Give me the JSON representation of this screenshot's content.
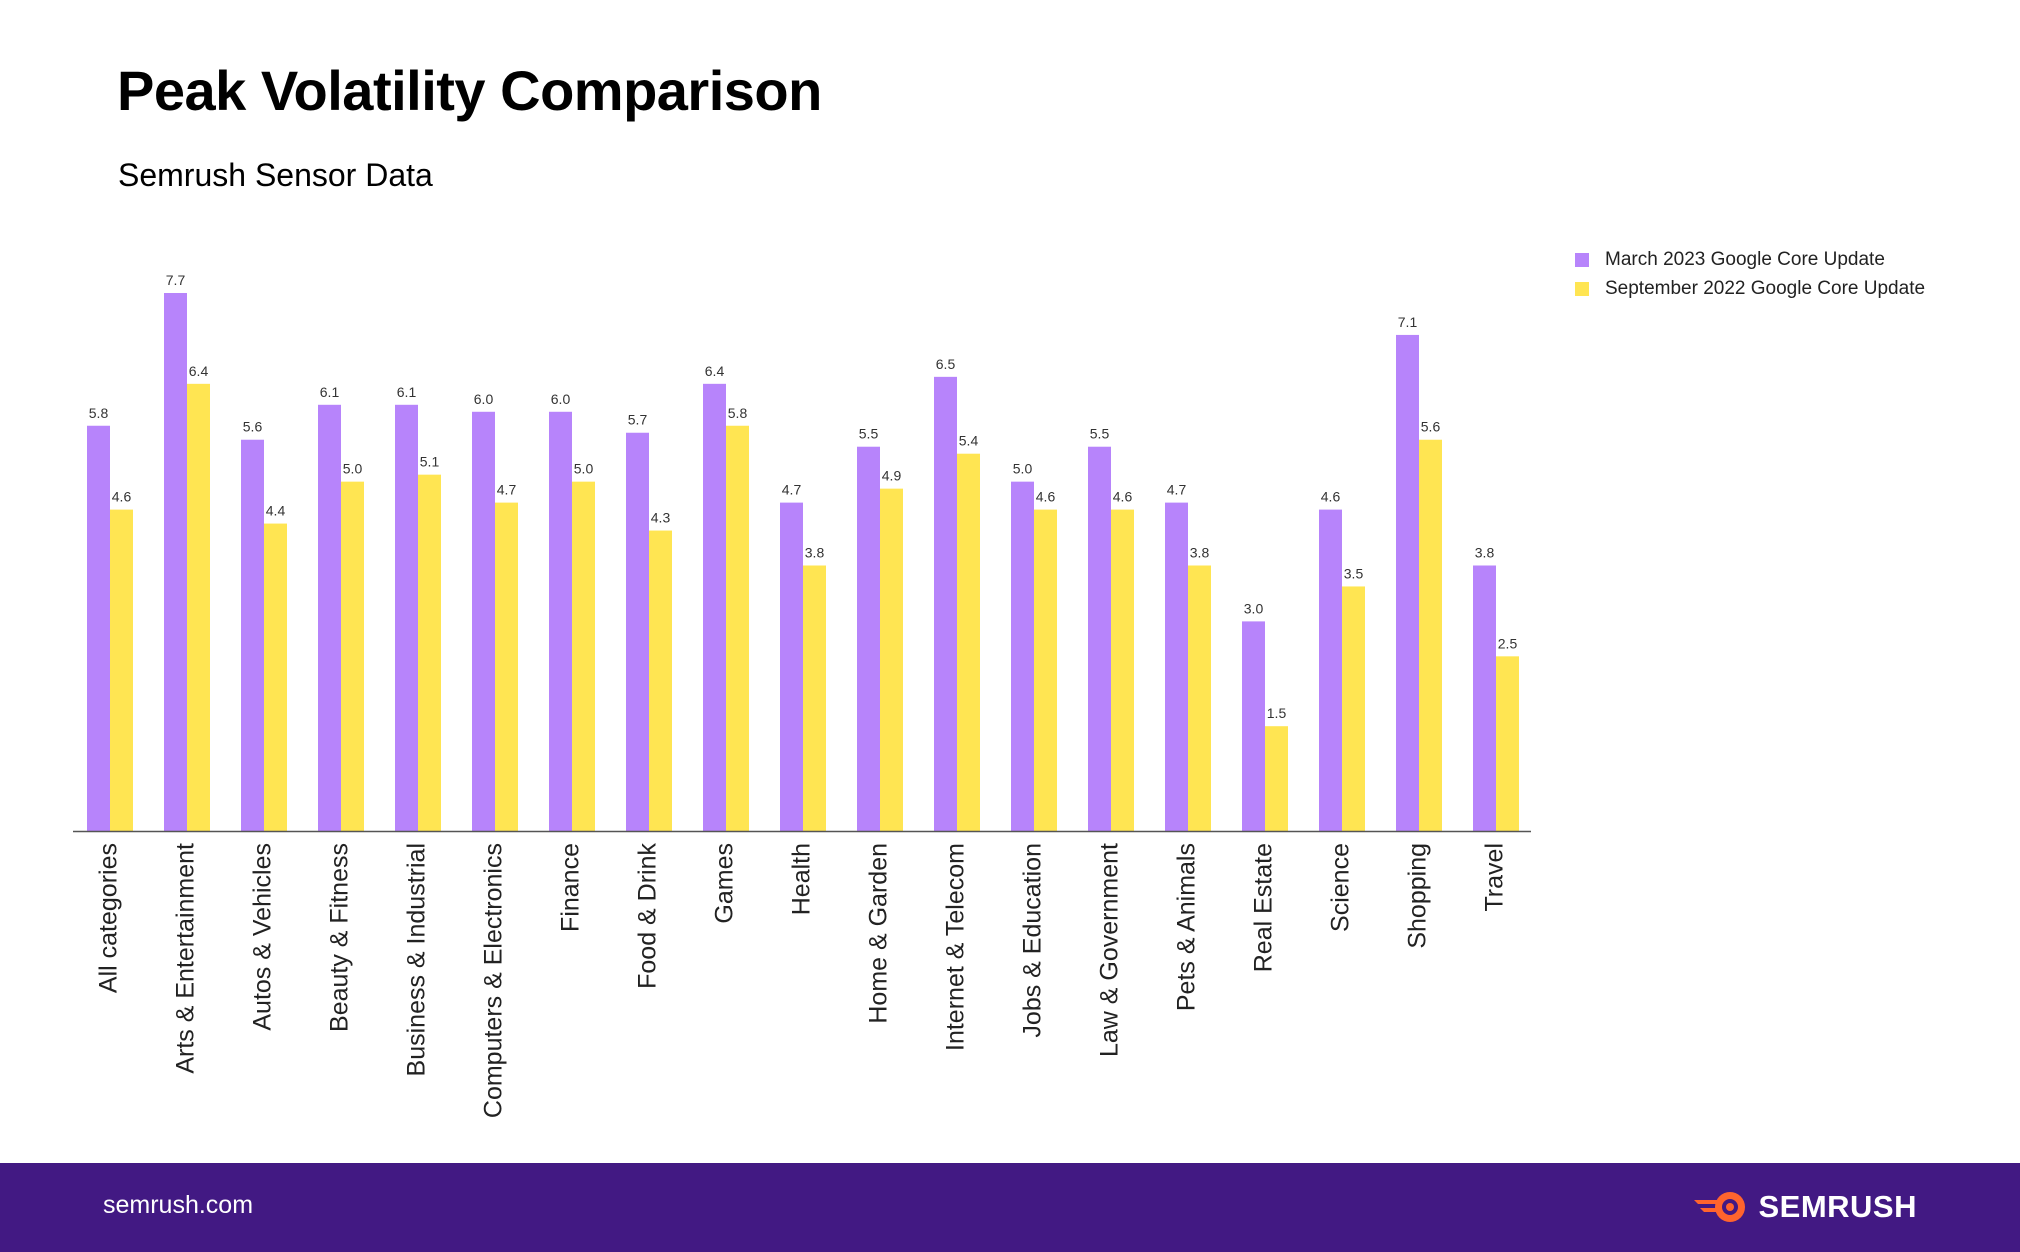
{
  "header": {
    "title": "Peak Volatility Comparison",
    "subtitle": "Semrush Sensor Data"
  },
  "legend": {
    "items": [
      {
        "label": "March 2023 Google Core Update",
        "color": "#b784fb"
      },
      {
        "label": "September 2022 Google Core Update",
        "color": "#ffe552"
      }
    ]
  },
  "chart_data": {
    "type": "bar",
    "title": "Peak Volatility Comparison",
    "subtitle": "Semrush Sensor Data",
    "xlabel": "",
    "ylabel": "",
    "ylim": [
      0,
      8
    ],
    "grid": false,
    "legend_position": "top-right",
    "categories": [
      "All categories",
      "Arts & Entertainment",
      "Autos & Vehicles",
      "Beauty & Fitness",
      "Business & Industrial",
      "Computers & Electronics",
      "Finance",
      "Food & Drink",
      "Games",
      "Health",
      "Home & Garden",
      "Internet & Telecom",
      "Jobs & Education",
      "Law & Government",
      "Pets & Animals",
      "Real Estate",
      "Science",
      "Shopping",
      "Travel"
    ],
    "series": [
      {
        "name": "March 2023 Google Core Update",
        "color": "#b784fb",
        "values": [
          5.8,
          7.7,
          5.6,
          6.1,
          6.1,
          6.0,
          6.0,
          5.7,
          6.4,
          4.7,
          5.5,
          6.5,
          5.0,
          5.5,
          4.7,
          3.0,
          4.6,
          7.1,
          3.8
        ]
      },
      {
        "name": "September 2022 Google Core Update",
        "color": "#ffe552",
        "values": [
          4.6,
          6.4,
          4.4,
          5.0,
          5.1,
          4.7,
          5.0,
          4.3,
          5.8,
          3.8,
          4.9,
          5.4,
          4.6,
          4.6,
          3.8,
          1.5,
          3.5,
          5.6,
          2.5
        ]
      }
    ]
  },
  "footer": {
    "url": "semrush.com",
    "brand": "SEMRUSH",
    "background": "#421983",
    "brand_accent": "#ff642d"
  }
}
